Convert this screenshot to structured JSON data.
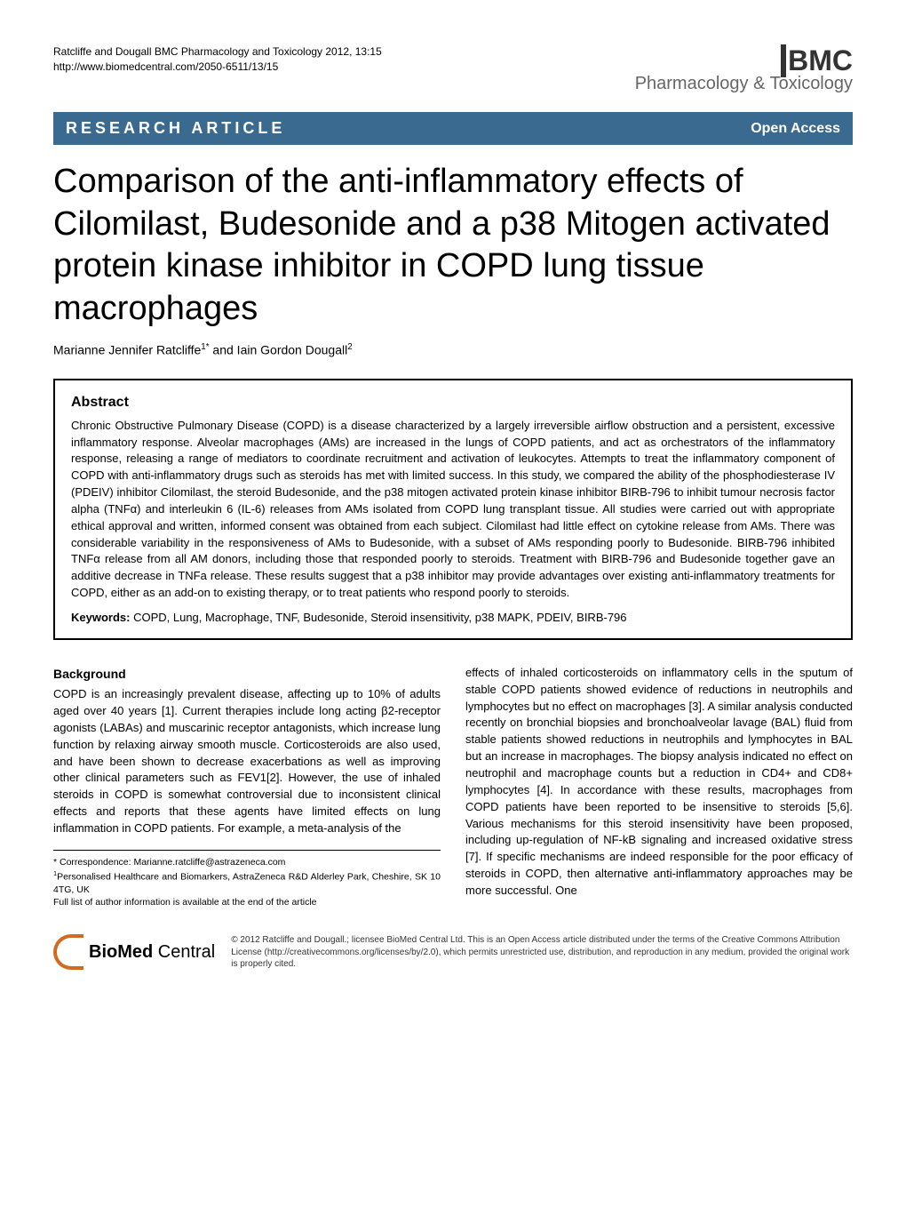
{
  "header": {
    "citation": "Ratcliffe and Dougall BMC Pharmacology and Toxicology 2012, 13:15",
    "url": "http://www.biomedcentral.com/2050-6511/13/15",
    "logo_main": "BMC",
    "logo_subtitle": "Pharmacology & Toxicology"
  },
  "article_type_bar": {
    "type": "RESEARCH ARTICLE",
    "access": "Open Access"
  },
  "title": "Comparison of the anti-inflammatory effects of Cilomilast, Budesonide and a p38 Mitogen activated protein kinase inhibitor in COPD lung tissue macrophages",
  "authors": "Marianne Jennifer Ratcliffe1* and Iain Gordon Dougall2",
  "abstract": {
    "heading": "Abstract",
    "text": "Chronic Obstructive Pulmonary Disease (COPD) is a disease characterized by a largely irreversible airflow obstruction and a persistent, excessive inflammatory response. Alveolar macrophages (AMs) are increased in the lungs of COPD patients, and act as orchestrators of the inflammatory response, releasing a range of mediators to coordinate recruitment and activation of leukocytes. Attempts to treat the inflammatory component of COPD with anti-inflammatory drugs such as steroids has met with limited success. In this study, we compared the ability of the phosphodiesterase IV (PDEIV) inhibitor Cilomilast, the steroid Budesonide, and the p38 mitogen activated protein kinase inhibitor BIRB-796 to inhibit tumour necrosis factor alpha (TNFα) and interleukin 6 (IL-6) releases from AMs isolated from COPD lung transplant tissue. All studies were carried out with appropriate ethical approval and written, informed consent was obtained from each subject. Cilomilast had little effect on cytokine release from AMs. There was considerable variability in the responsiveness of AMs to Budesonide, with a subset of AMs responding poorly to Budesonide. BIRB-796 inhibited TNFα release from all AM donors, including those that responded poorly to steroids. Treatment with BIRB-796 and Budesonide together gave an additive decrease in TNFa release. These results suggest that a p38 inhibitor may provide advantages over existing anti-inflammatory treatments for COPD, either as an add-on to existing therapy, or to treat patients who respond poorly to steroids.",
    "keywords_label": "Keywords:",
    "keywords": " COPD, Lung, Macrophage, TNF, Budesonide, Steroid insensitivity, p38 MAPK, PDEIV, BIRB-796"
  },
  "background": {
    "heading": "Background",
    "col1": "COPD is an increasingly prevalent disease, affecting up to 10% of adults aged over 40 years [1]. Current therapies include long acting β2-receptor agonists (LABAs) and muscarinic receptor antagonists, which increase lung function by relaxing airway smooth muscle. Corticosteroids are also used, and have been shown to decrease exacerbations as well as improving other clinical parameters such as FEV1[2]. However, the use of inhaled steroids in COPD is somewhat controversial due to inconsistent clinical effects and reports that these agents have limited effects on lung inflammation in COPD patients. For example, a meta-analysis of the",
    "col2": "effects of inhaled corticosteroids on inflammatory cells in the sputum of stable COPD patients showed evidence of reductions in neutrophils and lymphocytes but no effect on macrophages [3]. A similar analysis conducted recently on bronchial biopsies and bronchoalveolar lavage (BAL) fluid from stable patients showed reductions in neutrophils and lymphocytes in BAL but an increase in macrophages. The biopsy analysis indicated no effect on neutrophil and macrophage counts but a reduction in CD4+ and CD8+ lymphocytes [4]. In accordance with these results, macrophages from COPD patients have been reported to be insensitive to steroids [5,6]. Various mechanisms for this steroid insensitivity have been proposed, including up-regulation of NF-kB signaling and increased oxidative stress [7]. If specific mechanisms are indeed responsible for the poor efficacy of steroids in COPD, then alternative anti-inflammatory approaches may be more successful. One"
  },
  "correspondence": {
    "line1": "* Correspondence: Marianne.ratcliffe@astrazeneca.com",
    "line2": "1Personalised Healthcare and Biomarkers, AstraZeneca R&D Alderley Park, Cheshire, SK 10 4TG, UK",
    "line3": "Full list of author information is available at the end of the article"
  },
  "footer": {
    "logo_text_bold": "BioMed",
    "logo_text_light": " Central",
    "license": "© 2012 Ratcliffe and Dougall.; licensee BioMed Central Ltd. This is an Open Access article distributed under the terms of the Creative Commons Attribution License (http://creativecommons.org/licenses/by/2.0), which permits unrestricted use, distribution, and reproduction in any medium, provided the original work is properly cited."
  },
  "colors": {
    "bar_bg": "#3a6a8f",
    "bar_fg": "#ffffff",
    "logo_orange": "#d2691e",
    "text": "#000000",
    "gray": "#666666"
  }
}
